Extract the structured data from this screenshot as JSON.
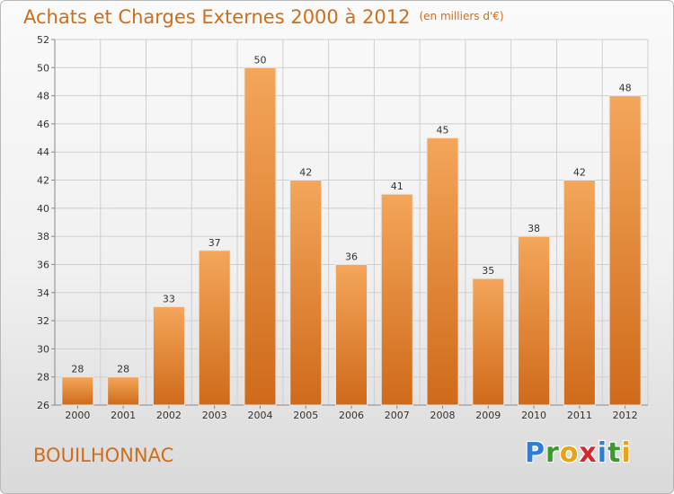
{
  "header": {
    "title": "Achats et Charges Externes 2000 à 2012",
    "subtitle": "(en milliers d'€)"
  },
  "footer": {
    "place": "BOUILHONNAC",
    "logo_letters": [
      {
        "ch": "P",
        "color": "#2b7fd6"
      },
      {
        "ch": "r",
        "color": "#3a9a2e"
      },
      {
        "ch": "o",
        "color": "#e8a317"
      },
      {
        "ch": "x",
        "color": "#d9262b"
      },
      {
        "ch": "i",
        "color": "#2b7fd6"
      },
      {
        "ch": "t",
        "color": "#3a9a2e"
      },
      {
        "ch": "i",
        "color": "#e8a317"
      }
    ]
  },
  "colors": {
    "title": "#d06d1a",
    "bar_light": "#f4a65a",
    "bar_dark": "#cf6a1a",
    "grid": "#cfcfcf"
  },
  "chart_data": {
    "type": "bar",
    "title": "Achats et Charges Externes 2000 à 2012",
    "subtitle": "(en milliers d'€)",
    "categories": [
      "2000",
      "2001",
      "2002",
      "2003",
      "2004",
      "2005",
      "2006",
      "2007",
      "2008",
      "2009",
      "2010",
      "2011",
      "2012"
    ],
    "values": [
      28,
      28,
      33,
      37,
      50,
      42,
      36,
      41,
      45,
      35,
      38,
      42,
      48
    ],
    "ylim": [
      26,
      52
    ],
    "yticks": [
      26,
      28,
      30,
      32,
      34,
      36,
      38,
      40,
      42,
      44,
      46,
      48,
      50,
      52
    ],
    "grid": true,
    "data_labels": true
  }
}
